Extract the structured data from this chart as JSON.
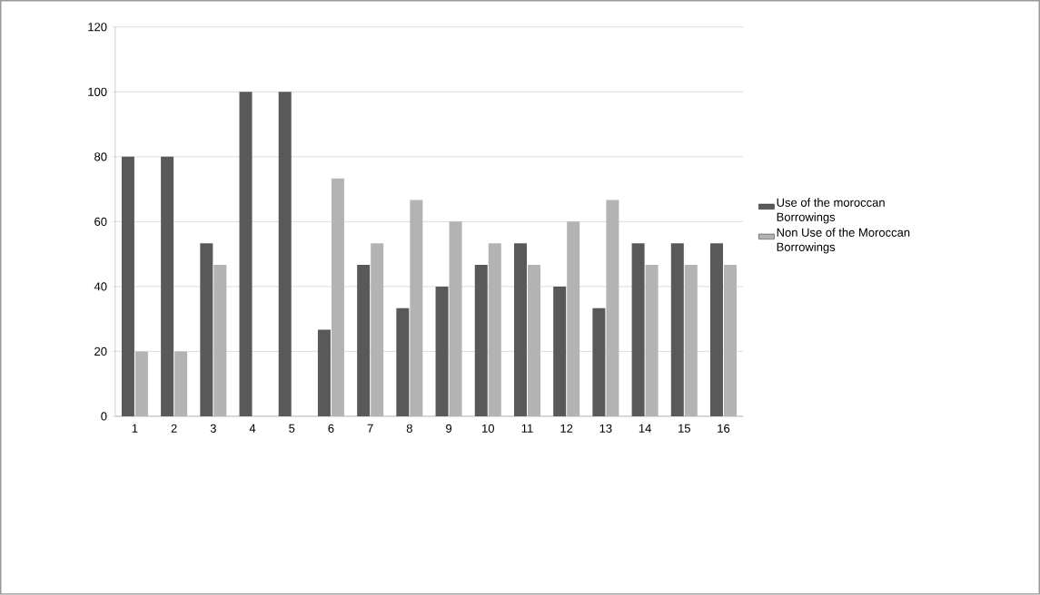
{
  "chart_data": {
    "type": "bar",
    "categories": [
      "1",
      "2",
      "3",
      "4",
      "5",
      "6",
      "7",
      "8",
      "9",
      "10",
      "11",
      "12",
      "13",
      "14",
      "15",
      "16"
    ],
    "series": [
      {
        "name": "Use of the moroccan Borrowings",
        "color": "#595959",
        "values": [
          80,
          80,
          53.3,
          100,
          100,
          26.7,
          46.7,
          33.3,
          40,
          46.7,
          53.3,
          40,
          33.3,
          53.3,
          53.3,
          53.3
        ]
      },
      {
        "name": "Non Use of the Moroccan Borrowings",
        "color": "#b3b3b3",
        "values": [
          20,
          20,
          46.7,
          0,
          0,
          73.3,
          53.3,
          66.7,
          60,
          53.3,
          46.7,
          60,
          66.7,
          46.7,
          46.7,
          46.7
        ]
      }
    ],
    "ylim": [
      0,
      120
    ],
    "yticks": [
      0,
      20,
      40,
      60,
      80,
      100,
      120
    ],
    "grid": "y",
    "legend": "right"
  }
}
